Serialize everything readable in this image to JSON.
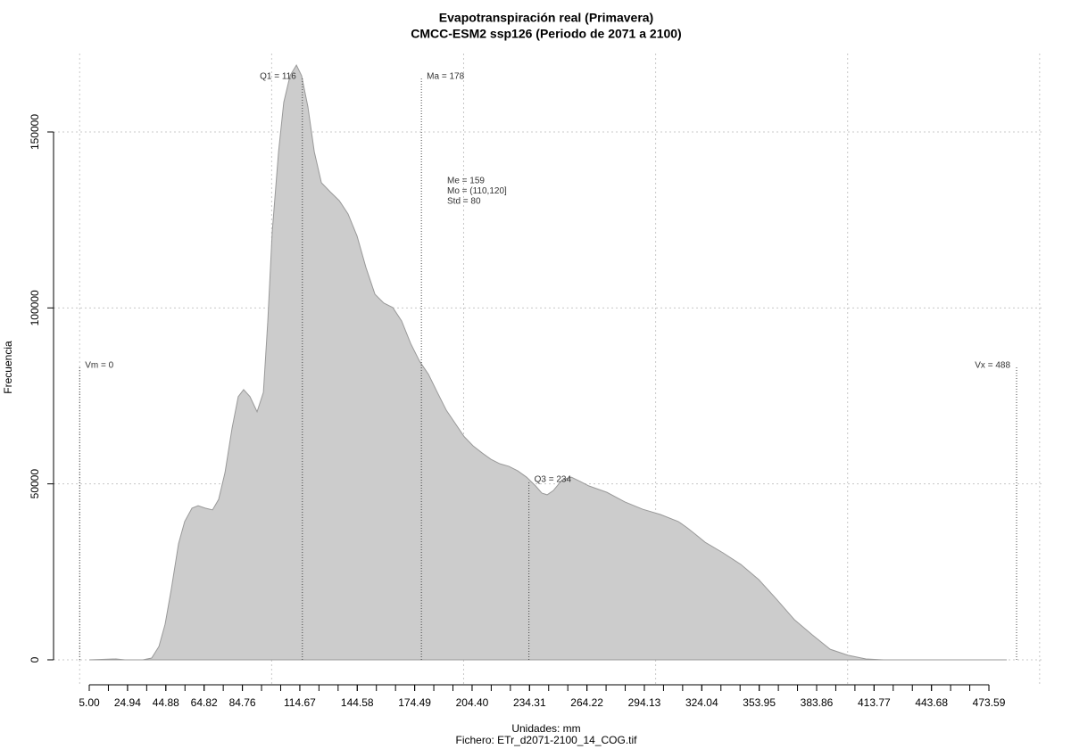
{
  "chart_data": {
    "type": "area",
    "title": "Evapotranspiración real (Primavera)",
    "subtitle": "CMCC-ESM2 ssp126 (Periodo de 2071 a 2100)",
    "x_label": "Unidades: mm",
    "caption": "Fichero: ETr_d2071-2100_14_COG.tif",
    "y_label": "Frecuencia",
    "xlim": [
      -13.6,
      502.4
    ],
    "ylim": [
      -7100,
      172300
    ],
    "yticks": [
      0,
      50000,
      100000,
      150000
    ],
    "xticks": [
      {
        "value": 5,
        "label": "5.00"
      },
      24.94,
      44.88,
      64.82,
      84.76,
      114.67,
      144.58,
      174.49,
      {
        "value": 204.4,
        "label": "204.40"
      },
      234.31,
      264.22,
      294.13,
      324.04,
      353.95,
      383.86,
      413.77,
      443.68,
      473.59
    ],
    "xminor_ticks": [
      5.0,
      14.97,
      24.94,
      34.91,
      44.88,
      54.85,
      64.82,
      74.79,
      84.76,
      94.73,
      104.7,
      114.67,
      124.64,
      134.61,
      144.58,
      154.55,
      164.52,
      174.49,
      184.46,
      194.43,
      204.4,
      214.37,
      224.34,
      234.31,
      244.28,
      254.25,
      264.22,
      274.19,
      284.16,
      294.13,
      304.1,
      314.07,
      324.04,
      334.01,
      343.98,
      353.95,
      363.92,
      373.89,
      383.86,
      393.83,
      403.8,
      413.77,
      423.74,
      433.71,
      443.68,
      453.65,
      463.62,
      473.59
    ],
    "grid": true,
    "xgrid": [
      0,
      100,
      200,
      300,
      400,
      500
    ],
    "x": [
      5,
      18.9,
      23.6,
      32.9,
      37.5,
      41.3,
      44.5,
      47.8,
      51.5,
      54.7,
      58.5,
      61.7,
      65.4,
      69.2,
      72.4,
      75.7,
      79.4,
      82.6,
      85.4,
      88.7,
      92.4,
      95.7,
      98.0,
      100.3,
      103.6,
      106.3,
      109.6,
      112.9,
      115.6,
      118.9,
      122.2,
      125.9,
      130.5,
      135.2,
      139.8,
      144.5,
      149.1,
      153.8,
      158.4,
      163.1,
      167.7,
      172.4,
      177.0,
      181.7,
      186.3,
      191.0,
      195.6,
      200.3,
      204.9,
      209.6,
      214.2,
      218.9,
      223.5,
      228.2,
      232.8,
      237.5,
      240.7,
      243.5,
      246.7,
      251.4,
      256.1,
      260.7,
      265.3,
      274.6,
      283.9,
      293.2,
      302.5,
      311.8,
      316.5,
      321.1,
      325.8,
      335.1,
      344.4,
      353.7,
      363.0,
      372.3,
      381.6,
      390.9,
      400.2,
      409.5,
      418.7,
      428.0,
      446.6,
      482.9
    ],
    "series": [
      {
        "color": "#cccccc",
        "stroke": "#999999",
        "values": [
          0,
          250,
          0,
          0,
          500,
          3800,
          10100,
          20300,
          33000,
          39300,
          43100,
          43800,
          43100,
          42600,
          45600,
          53200,
          65900,
          74800,
          76800,
          74800,
          70500,
          76000,
          96300,
          121600,
          144400,
          158400,
          166000,
          169000,
          166000,
          157100,
          144400,
          135600,
          133000,
          130500,
          126700,
          120400,
          111500,
          103900,
          101400,
          100100,
          96300,
          89900,
          84900,
          81100,
          76000,
          70900,
          67200,
          63400,
          60800,
          58800,
          57000,
          55700,
          55000,
          53700,
          51900,
          49400,
          47400,
          46900,
          48100,
          51200,
          51900,
          50700,
          49400,
          47600,
          44900,
          42800,
          41300,
          39300,
          37500,
          35500,
          33400,
          30400,
          27100,
          22800,
          17200,
          11400,
          7100,
          3000,
          1300,
          250,
          0,
          0,
          0,
          0
        ]
      }
    ],
    "markers": [
      {
        "label": "Vm = 0",
        "x": 0,
        "y": 83100,
        "anchor": "start"
      },
      {
        "label": "Q1 = 116",
        "x": 116,
        "y": 165200,
        "anchor": "end"
      },
      {
        "label": "Ma = 178",
        "x": 178,
        "y": 165200,
        "anchor": "start"
      },
      {
        "label": "Q3 = 234",
        "x": 234,
        "y": 50700,
        "anchor": "start"
      },
      {
        "label": "Vx = 488",
        "x": 488,
        "y": 83100,
        "anchor": "end"
      }
    ],
    "annotations": [
      "Me = 159",
      "Mo = (110,120]",
      "Std = 80"
    ]
  }
}
